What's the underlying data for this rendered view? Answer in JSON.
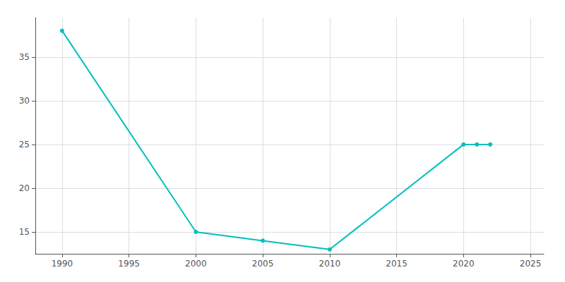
{
  "chart_data": {
    "type": "line",
    "x": [
      1990,
      2000,
      2005,
      2010,
      2020,
      2021,
      2022
    ],
    "values": [
      38,
      15,
      14,
      13,
      25,
      25,
      25
    ],
    "color": "#00BFBF",
    "marker": "circle",
    "xlim": [
      1988,
      2026
    ],
    "ylim": [
      12.5,
      39.5
    ],
    "xticks": [
      1990,
      1995,
      2000,
      2005,
      2010,
      2015,
      2020,
      2025
    ],
    "yticks": [
      15,
      20,
      25,
      30,
      35
    ],
    "grid": true
  }
}
